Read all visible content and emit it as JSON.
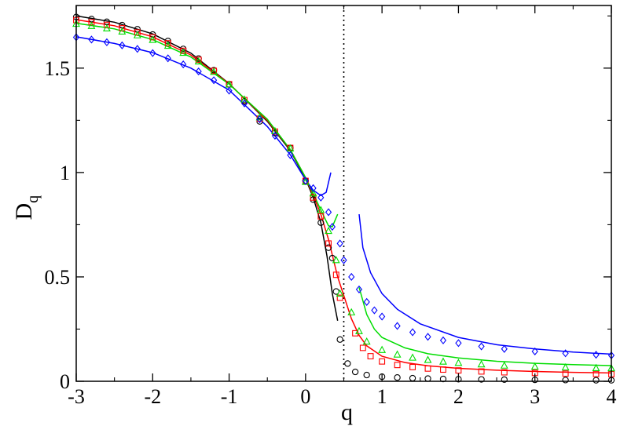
{
  "chart_data": {
    "type": "scatter",
    "title": "",
    "xlabel": "q",
    "ylabel": "D",
    "ylabel_sub": "q",
    "xlim": [
      -3,
      4
    ],
    "ylim": [
      0,
      1.8
    ],
    "xticks": [
      "-3",
      "-2",
      "-1",
      "0",
      "1",
      "2",
      "3",
      "4"
    ],
    "yticks": [
      "0",
      "0.5",
      "1",
      "1.5"
    ],
    "xtick_values": [
      -3,
      -2,
      -1,
      0,
      1,
      2,
      3,
      4
    ],
    "ytick_values": [
      0,
      0.5,
      1,
      1.5
    ],
    "grid": false,
    "legend": "none",
    "reference_line": {
      "x": 0.5,
      "style": "dotted",
      "color": "#000000"
    },
    "series": [
      {
        "marker": "circle",
        "color": "#000000",
        "points": [
          [
            -3.0,
            1.745
          ],
          [
            -2.8,
            1.735
          ],
          [
            -2.6,
            1.722
          ],
          [
            -2.4,
            1.706
          ],
          [
            -2.2,
            1.686
          ],
          [
            -2.0,
            1.661
          ],
          [
            -1.8,
            1.63
          ],
          [
            -1.6,
            1.592
          ],
          [
            -1.4,
            1.546
          ],
          [
            -1.2,
            1.49
          ],
          [
            -1.0,
            1.422
          ],
          [
            -0.8,
            1.341
          ],
          [
            -0.6,
            1.245
          ],
          [
            -0.4,
            1.19
          ],
          [
            -0.2,
            1.118
          ],
          [
            0.0,
            0.96
          ],
          [
            0.1,
            0.87
          ],
          [
            0.2,
            0.76
          ],
          [
            0.3,
            0.64
          ],
          [
            0.35,
            0.59
          ],
          [
            0.4,
            0.43
          ],
          [
            0.45,
            0.2
          ],
          [
            0.55,
            0.085
          ],
          [
            0.65,
            0.045
          ],
          [
            0.8,
            0.03
          ],
          [
            1.0,
            0.022
          ],
          [
            1.2,
            0.018
          ],
          [
            1.4,
            0.015
          ],
          [
            1.6,
            0.013
          ],
          [
            1.8,
            0.011
          ],
          [
            2.0,
            0.01
          ],
          [
            2.3,
            0.009
          ],
          [
            2.6,
            0.008
          ],
          [
            3.0,
            0.007
          ],
          [
            3.4,
            0.006
          ],
          [
            3.8,
            0.005
          ],
          [
            4.0,
            0.005
          ]
        ],
        "curve": [
          [
            -3.0,
            1.75
          ],
          [
            -2.5,
            1.72
          ],
          [
            -2.0,
            1.664
          ],
          [
            -1.5,
            1.572
          ],
          [
            -1.0,
            1.426
          ],
          [
            -0.5,
            1.245
          ],
          [
            -0.2,
            1.105
          ],
          [
            0.0,
            0.97
          ],
          [
            0.1,
            0.88
          ],
          [
            0.2,
            0.76
          ],
          [
            0.28,
            0.6
          ],
          [
            0.35,
            0.42
          ],
          [
            0.42,
            0.29
          ]
        ]
      },
      {
        "marker": "square",
        "color": "#ff0000",
        "points": [
          [
            -3.0,
            1.73
          ],
          [
            -2.8,
            1.72
          ],
          [
            -2.6,
            1.707
          ],
          [
            -2.4,
            1.691
          ],
          [
            -2.2,
            1.671
          ],
          [
            -2.0,
            1.648
          ],
          [
            -1.8,
            1.619
          ],
          [
            -1.6,
            1.583
          ],
          [
            -1.4,
            1.54
          ],
          [
            -1.2,
            1.487
          ],
          [
            -1.0,
            1.423
          ],
          [
            -0.8,
            1.347
          ],
          [
            -0.6,
            1.258
          ],
          [
            -0.4,
            1.196
          ],
          [
            -0.2,
            1.118
          ],
          [
            0.0,
            0.96
          ],
          [
            0.1,
            0.88
          ],
          [
            0.2,
            0.79
          ],
          [
            0.3,
            0.66
          ],
          [
            0.4,
            0.51
          ],
          [
            0.45,
            0.4
          ],
          [
            0.65,
            0.23
          ],
          [
            0.75,
            0.16
          ],
          [
            0.85,
            0.12
          ],
          [
            1.0,
            0.095
          ],
          [
            1.2,
            0.078
          ],
          [
            1.4,
            0.068
          ],
          [
            1.6,
            0.061
          ],
          [
            1.8,
            0.056
          ],
          [
            2.0,
            0.052
          ],
          [
            2.3,
            0.047
          ],
          [
            2.6,
            0.043
          ],
          [
            3.0,
            0.04
          ],
          [
            3.4,
            0.037
          ],
          [
            3.8,
            0.035
          ],
          [
            4.0,
            0.034
          ]
        ],
        "curve": [
          [
            -3.0,
            1.732
          ],
          [
            -2.5,
            1.703
          ],
          [
            -2.0,
            1.65
          ],
          [
            -1.5,
            1.563
          ],
          [
            -1.0,
            1.425
          ],
          [
            -0.5,
            1.25
          ],
          [
            -0.2,
            1.11
          ],
          [
            0.0,
            0.975
          ],
          [
            0.1,
            0.89
          ],
          [
            0.2,
            0.8
          ],
          [
            0.3,
            0.68
          ],
          [
            0.38,
            0.56
          ],
          [
            0.42,
            0.5
          ],
          [
            0.6,
            0.3
          ],
          [
            0.7,
            0.22
          ],
          [
            0.8,
            0.17
          ],
          [
            1.0,
            0.12
          ],
          [
            1.3,
            0.09
          ],
          [
            1.6,
            0.074
          ],
          [
            2.0,
            0.062
          ],
          [
            2.5,
            0.053
          ],
          [
            3.0,
            0.047
          ],
          [
            3.5,
            0.043
          ],
          [
            4.0,
            0.04
          ]
        ]
      },
      {
        "marker": "triangle",
        "color": "#00dd00",
        "points": [
          [
            -3.0,
            1.712
          ],
          [
            -2.8,
            1.702
          ],
          [
            -2.6,
            1.69
          ],
          [
            -2.4,
            1.675
          ],
          [
            -2.2,
            1.657
          ],
          [
            -2.0,
            1.635
          ],
          [
            -1.8,
            1.607
          ],
          [
            -1.6,
            1.573
          ],
          [
            -1.4,
            1.532
          ],
          [
            -1.2,
            1.482
          ],
          [
            -1.0,
            1.421
          ],
          [
            -0.8,
            1.349
          ],
          [
            -0.6,
            1.264
          ],
          [
            -0.4,
            1.198
          ],
          [
            -0.2,
            1.115
          ],
          [
            0.0,
            0.955
          ],
          [
            0.1,
            0.9
          ],
          [
            0.2,
            0.82
          ],
          [
            0.3,
            0.72
          ],
          [
            0.4,
            0.58
          ],
          [
            0.45,
            0.42
          ],
          [
            0.6,
            0.33
          ],
          [
            0.7,
            0.24
          ],
          [
            0.8,
            0.19
          ],
          [
            1.0,
            0.15
          ],
          [
            1.2,
            0.128
          ],
          [
            1.4,
            0.113
          ],
          [
            1.6,
            0.102
          ],
          [
            1.8,
            0.094
          ],
          [
            2.0,
            0.088
          ],
          [
            2.3,
            0.081
          ],
          [
            2.6,
            0.075
          ],
          [
            3.0,
            0.07
          ],
          [
            3.4,
            0.066
          ],
          [
            3.8,
            0.063
          ],
          [
            4.0,
            0.062
          ]
        ],
        "curve": [
          [
            -3.0,
            1.715
          ],
          [
            -2.5,
            1.688
          ],
          [
            -2.0,
            1.637
          ],
          [
            -1.5,
            1.553
          ],
          [
            -1.0,
            1.423
          ],
          [
            -0.5,
            1.255
          ],
          [
            -0.2,
            1.11
          ],
          [
            0.0,
            0.975
          ],
          [
            0.1,
            0.9
          ],
          [
            0.2,
            0.82
          ],
          [
            0.3,
            0.745
          ],
          [
            0.35,
            0.74
          ],
          [
            0.42,
            0.8
          ],
          [
            0.7,
            0.45
          ],
          [
            0.8,
            0.32
          ],
          [
            0.9,
            0.25
          ],
          [
            1.0,
            0.21
          ],
          [
            1.3,
            0.16
          ],
          [
            1.6,
            0.132
          ],
          [
            2.0,
            0.112
          ],
          [
            2.5,
            0.096
          ],
          [
            3.0,
            0.086
          ],
          [
            3.5,
            0.08
          ],
          [
            4.0,
            0.075
          ]
        ]
      },
      {
        "marker": "diamond",
        "color": "#0000ff",
        "points": [
          [
            -3.0,
            1.648
          ],
          [
            -2.8,
            1.637
          ],
          [
            -2.6,
            1.624
          ],
          [
            -2.4,
            1.609
          ],
          [
            -2.2,
            1.592
          ],
          [
            -2.0,
            1.572
          ],
          [
            -1.8,
            1.547
          ],
          [
            -1.6,
            1.518
          ],
          [
            -1.4,
            1.484
          ],
          [
            -1.2,
            1.442
          ],
          [
            -1.0,
            1.392
          ],
          [
            -0.8,
            1.331
          ],
          [
            -0.6,
            1.255
          ],
          [
            -0.4,
            1.176
          ],
          [
            -0.2,
            1.083
          ],
          [
            0.0,
            0.96
          ],
          [
            0.1,
            0.925
          ],
          [
            0.2,
            0.88
          ],
          [
            0.3,
            0.81
          ],
          [
            0.35,
            0.74
          ],
          [
            0.45,
            0.66
          ],
          [
            0.5,
            0.58
          ],
          [
            0.6,
            0.5
          ],
          [
            0.7,
            0.44
          ],
          [
            0.8,
            0.38
          ],
          [
            0.9,
            0.34
          ],
          [
            1.0,
            0.31
          ],
          [
            1.2,
            0.265
          ],
          [
            1.4,
            0.235
          ],
          [
            1.6,
            0.213
          ],
          [
            1.8,
            0.196
          ],
          [
            2.0,
            0.183
          ],
          [
            2.3,
            0.167
          ],
          [
            2.6,
            0.155
          ],
          [
            3.0,
            0.143
          ],
          [
            3.4,
            0.134
          ],
          [
            3.8,
            0.127
          ],
          [
            4.0,
            0.124
          ]
        ],
        "curve": [
          [
            -3.0,
            1.65
          ],
          [
            -2.5,
            1.618
          ],
          [
            -2.0,
            1.574
          ],
          [
            -1.5,
            1.5
          ],
          [
            -1.0,
            1.395
          ],
          [
            -0.5,
            1.22
          ],
          [
            -0.2,
            1.085
          ],
          [
            0.0,
            0.965
          ],
          [
            0.1,
            0.915
          ],
          [
            0.2,
            0.89
          ],
          [
            0.27,
            0.905
          ],
          [
            0.33,
            1.0
          ],
          [
            0.7,
            0.8
          ],
          [
            0.75,
            0.64
          ],
          [
            0.85,
            0.52
          ],
          [
            1.0,
            0.42
          ],
          [
            1.2,
            0.345
          ],
          [
            1.5,
            0.275
          ],
          [
            2.0,
            0.21
          ],
          [
            2.5,
            0.175
          ],
          [
            3.0,
            0.155
          ],
          [
            3.5,
            0.14
          ],
          [
            4.0,
            0.13
          ]
        ]
      }
    ]
  }
}
